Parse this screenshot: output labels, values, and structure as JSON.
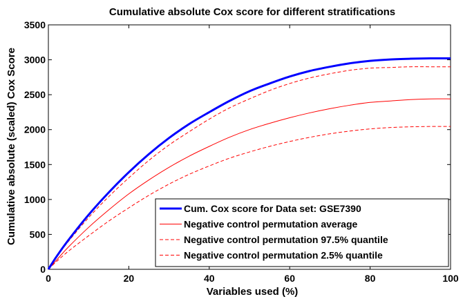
{
  "chart_data": {
    "type": "line",
    "title": "Cumulative absolute Cox score for different stratifications",
    "xlabel": "Variables used (%)",
    "ylabel": "Cumulative absolute (scaled) Cox Score",
    "xlim": [
      0,
      100
    ],
    "ylim": [
      0,
      3500
    ],
    "xticks": [
      0,
      20,
      40,
      60,
      80,
      100
    ],
    "yticks": [
      0,
      500,
      1000,
      1500,
      2000,
      2500,
      3000,
      3500
    ],
    "grid": false,
    "legend_position": "bottom-right",
    "x": [
      0,
      2,
      5,
      10,
      15,
      20,
      25,
      30,
      35,
      40,
      45,
      50,
      55,
      60,
      65,
      70,
      75,
      80,
      85,
      90,
      95,
      100
    ],
    "series": [
      {
        "name": "Cum. Cox score for Data set: GSE7390",
        "color": "#0000ff",
        "style": "solid",
        "width": "thick",
        "values": [
          0,
          180,
          420,
          780,
          1100,
          1390,
          1650,
          1880,
          2080,
          2250,
          2410,
          2550,
          2660,
          2760,
          2840,
          2900,
          2950,
          2985,
          3005,
          3015,
          3020,
          3020
        ]
      },
      {
        "name": "Negative control permutation average",
        "color": "#ff0000",
        "style": "solid",
        "width": "thin",
        "values": [
          0,
          130,
          320,
          600,
          850,
          1080,
          1280,
          1460,
          1620,
          1760,
          1890,
          2000,
          2090,
          2170,
          2240,
          2300,
          2350,
          2390,
          2410,
          2430,
          2440,
          2440
        ]
      },
      {
        "name": "Negative control permutation 97.5% quantile",
        "color": "#ff0000",
        "style": "dashed",
        "width": "thin",
        "values": [
          0,
          170,
          400,
          740,
          1040,
          1310,
          1560,
          1780,
          1970,
          2150,
          2310,
          2440,
          2560,
          2660,
          2740,
          2800,
          2850,
          2880,
          2890,
          2900,
          2900,
          2900
        ]
      },
      {
        "name": "Negative control permutation 2.5% quantile",
        "color": "#ff0000",
        "style": "dashed",
        "width": "thin",
        "values": [
          0,
          110,
          260,
          480,
          690,
          880,
          1060,
          1220,
          1360,
          1480,
          1590,
          1680,
          1760,
          1830,
          1890,
          1940,
          1980,
          2010,
          2030,
          2040,
          2045,
          2045
        ]
      }
    ]
  }
}
